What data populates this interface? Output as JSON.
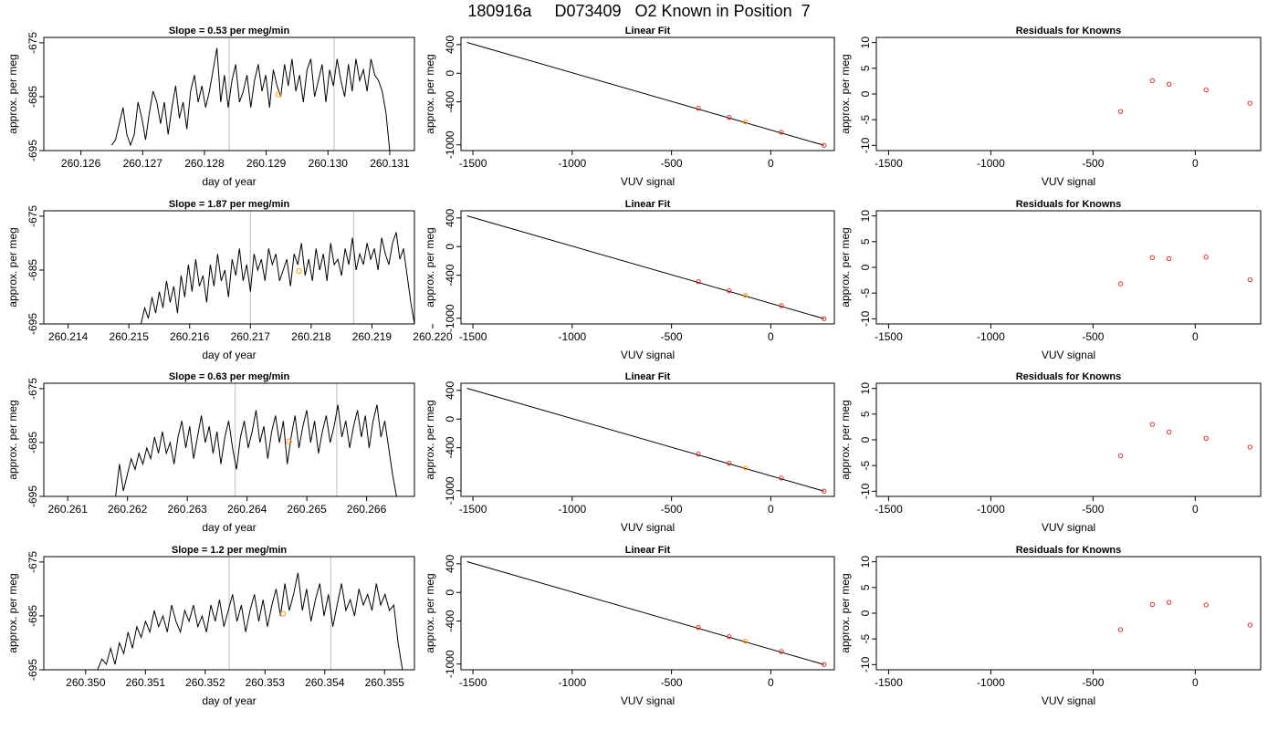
{
  "page": {
    "title": "180916a     D073409   O2 Known in Position  7"
  },
  "colors": {
    "axis": "#000000",
    "line": "#000000",
    "marker_known": "#e03030",
    "marker_highlight": "#ff9900",
    "vline": "#c8c8c8"
  },
  "chart_data": [
    {
      "panel": "row1-timeseries",
      "type": "line",
      "title": "Slope =  0.53  per meg/min",
      "xlabel": "day of year",
      "ylabel": "approx. per meg",
      "xlim": [
        260.1254,
        260.1314
      ],
      "ylim": [
        -695,
        -674
      ],
      "xticks": [
        260.126,
        260.127,
        260.128,
        260.129,
        260.13,
        260.131
      ],
      "xtick_labels": [
        "260.126",
        "260.127",
        "260.128",
        "260.129",
        "260.130",
        "260.131"
      ],
      "yticks": [
        -675,
        -685,
        -695
      ],
      "ytick_labels": [
        "-675",
        "-685",
        "-695"
      ],
      "vlines": [
        260.1284,
        260.1301
      ],
      "highlight_point": [
        260.1292,
        -684.6
      ],
      "series_x_start": 260.1265,
      "series_x_end": 260.131,
      "series_y": [
        -694,
        -693,
        -690,
        -687,
        -692,
        -694,
        -692,
        -686,
        -689,
        -693,
        -688,
        -684,
        -686,
        -690,
        -686,
        -692,
        -687,
        -683,
        -689,
        -686,
        -691,
        -684,
        -681,
        -686,
        -683,
        -687,
        -684,
        -680,
        -676,
        -686,
        -681,
        -687,
        -682,
        -679,
        -686,
        -684,
        -681,
        -687,
        -682,
        -679,
        -684,
        -681,
        -687,
        -680,
        -683,
        -685,
        -679,
        -683,
        -678,
        -684,
        -681,
        -686,
        -680,
        -678,
        -685,
        -682,
        -679,
        -686,
        -680,
        -683,
        -678,
        -682,
        -685,
        -679,
        -684,
        -678,
        -682,
        -680,
        -684,
        -678,
        -681,
        -682,
        -684,
        -688,
        -695
      ]
    },
    {
      "panel": "row1-linearfit",
      "type": "scatter",
      "title": "Linear Fit",
      "xlabel": "VUV signal",
      "ylabel": "approx. per meg",
      "xlim": [
        -1560,
        320
      ],
      "ylim": [
        -1080,
        500
      ],
      "xticks": [
        -1500,
        -1000,
        -500,
        0
      ],
      "xtick_labels": [
        "-1500",
        "-1000",
        "-500",
        "0"
      ],
      "yticks": [
        400,
        0,
        -400,
        -1000
      ],
      "ytick_labels": [
        "400",
        "0",
        "-400",
        "-1000"
      ],
      "fit_line": [
        [
          -1530,
          430
        ],
        [
          268,
          -1007
        ]
      ],
      "points": [
        [
          -365,
          -490
        ],
        [
          -210,
          -617
        ],
        [
          -128,
          -682
        ],
        [
          53,
          -824
        ],
        [
          268,
          -1006
        ]
      ],
      "highlight_index": 2
    },
    {
      "panel": "row1-residuals",
      "type": "scatter",
      "title": "Residuals for Knowns",
      "xlabel": "VUV signal",
      "ylabel": "approx. per meg",
      "xlim": [
        -1560,
        320
      ],
      "ylim": [
        -11,
        11
      ],
      "xticks": [
        -1500,
        -1000,
        -500,
        0
      ],
      "xtick_labels": [
        "-1500",
        "-1000",
        "-500",
        "0"
      ],
      "yticks": [
        10,
        5,
        0,
        -5,
        -10
      ],
      "ytick_labels": [
        "10",
        "5",
        "0",
        "-5",
        "-10"
      ],
      "points": [
        [
          -365,
          -3.4
        ],
        [
          -210,
          2.6
        ],
        [
          -128,
          1.9
        ],
        [
          53,
          0.8
        ],
        [
          268,
          -1.8
        ]
      ]
    },
    {
      "panel": "row2-timeseries",
      "type": "line",
      "title": "Slope =  1.87  per meg/min",
      "xlabel": "day of year",
      "ylabel": "approx. per meg",
      "xlim": [
        260.2136,
        260.2197
      ],
      "ylim": [
        -695,
        -674
      ],
      "xticks": [
        260.214,
        260.215,
        260.216,
        260.217,
        260.218,
        260.219,
        260.22
      ],
      "xtick_labels": [
        "260.214",
        "260.215",
        "260.216",
        "260.217",
        "260.218",
        "260.219",
        "260.220"
      ],
      "yticks": [
        -675,
        -685,
        -695
      ],
      "ytick_labels": [
        "-675",
        "-685",
        "-695"
      ],
      "vlines": [
        260.217,
        260.2187
      ],
      "highlight_point": [
        260.2178,
        -685.2
      ],
      "series_x_start": 260.2152,
      "series_x_end": 260.2197,
      "series_y": [
        -695,
        -692,
        -694,
        -690,
        -693,
        -689,
        -692,
        -687,
        -691,
        -688,
        -693,
        -686,
        -690,
        -684,
        -689,
        -683,
        -688,
        -686,
        -691,
        -684,
        -688,
        -682,
        -687,
        -685,
        -690,
        -683,
        -686,
        -681,
        -687,
        -684,
        -689,
        -682,
        -685,
        -683,
        -687,
        -681,
        -684,
        -682,
        -687,
        -685,
        -683,
        -688,
        -682,
        -684,
        -680,
        -686,
        -683,
        -687,
        -681,
        -685,
        -682,
        -687,
        -680,
        -684,
        -683,
        -686,
        -681,
        -684,
        -679,
        -685,
        -682,
        -684,
        -680,
        -683,
        -681,
        -685,
        -679,
        -682,
        -684,
        -680,
        -678,
        -683,
        -681,
        -686,
        -691,
        -695
      ]
    },
    {
      "panel": "row2-linearfit",
      "type": "scatter",
      "title": "Linear Fit",
      "xlabel": "VUV signal",
      "ylabel": "approx. per meg",
      "xlim": [
        -1560,
        320
      ],
      "ylim": [
        -1080,
        500
      ],
      "xticks": [
        -1500,
        -1000,
        -500,
        0
      ],
      "xtick_labels": [
        "-1500",
        "-1000",
        "-500",
        "0"
      ],
      "yticks": [
        400,
        0,
        -400,
        -1000
      ],
      "ytick_labels": [
        "400",
        "0",
        "-400",
        "-1000"
      ],
      "fit_line": [
        [
          -1530,
          430
        ],
        [
          268,
          -1007
        ]
      ],
      "points": [
        [
          -365,
          -490
        ],
        [
          -210,
          -617
        ],
        [
          -128,
          -682
        ],
        [
          53,
          -824
        ],
        [
          268,
          -1006
        ]
      ],
      "highlight_index": 2
    },
    {
      "panel": "row2-residuals",
      "type": "scatter",
      "title": "Residuals for Knowns",
      "xlabel": "VUV signal",
      "ylabel": "approx. per meg",
      "xlim": [
        -1560,
        320
      ],
      "ylim": [
        -11,
        11
      ],
      "xticks": [
        -1500,
        -1000,
        -500,
        0
      ],
      "xtick_labels": [
        "-1500",
        "-1000",
        "-500",
        "0"
      ],
      "yticks": [
        10,
        5,
        0,
        -5,
        -10
      ],
      "ytick_labels": [
        "10",
        "5",
        "0",
        "-5",
        "-10"
      ],
      "points": [
        [
          -365,
          -3.2
        ],
        [
          -210,
          1.9
        ],
        [
          -128,
          1.7
        ],
        [
          53,
          2.0
        ],
        [
          268,
          -2.4
        ]
      ]
    },
    {
      "panel": "row3-timeseries",
      "type": "line",
      "title": "Slope =  0.63  per meg/min",
      "xlabel": "day of year",
      "ylabel": "approx. per meg",
      "xlim": [
        260.2606,
        260.2668
      ],
      "ylim": [
        -695,
        -674
      ],
      "xticks": [
        260.261,
        260.262,
        260.263,
        260.264,
        260.265,
        260.266
      ],
      "xtick_labels": [
        "260.261",
        "260.262",
        "260.263",
        "260.264",
        "260.265",
        "260.266"
      ],
      "yticks": [
        -675,
        -685,
        -695
      ],
      "ytick_labels": [
        "-675",
        "-685",
        "-695"
      ],
      "vlines": [
        260.2638,
        260.2655
      ],
      "highlight_point": [
        260.2647,
        -684.8
      ],
      "series_x_start": 260.2618,
      "series_x_end": 260.2665,
      "series_y": [
        -695,
        -689,
        -694,
        -691,
        -688,
        -690,
        -687,
        -689,
        -686,
        -688,
        -684,
        -687,
        -683,
        -687,
        -685,
        -689,
        -684,
        -681,
        -686,
        -682,
        -688,
        -684,
        -680,
        -685,
        -682,
        -687,
        -683,
        -689,
        -684,
        -681,
        -686,
        -690,
        -684,
        -681,
        -686,
        -683,
        -679,
        -685,
        -682,
        -688,
        -683,
        -680,
        -685,
        -681,
        -689,
        -684,
        -680,
        -686,
        -682,
        -679,
        -685,
        -681,
        -687,
        -683,
        -680,
        -685,
        -682,
        -678,
        -684,
        -681,
        -686,
        -682,
        -679,
        -684,
        -680,
        -686,
        -681,
        -678,
        -684,
        -681,
        -686,
        -691,
        -695
      ]
    },
    {
      "panel": "row3-linearfit",
      "type": "scatter",
      "title": "Linear Fit",
      "xlabel": "VUV signal",
      "ylabel": "approx. per meg",
      "xlim": [
        -1560,
        320
      ],
      "ylim": [
        -1080,
        500
      ],
      "xticks": [
        -1500,
        -1000,
        -500,
        0
      ],
      "xtick_labels": [
        "-1500",
        "-1000",
        "-500",
        "0"
      ],
      "yticks": [
        400,
        0,
        -400,
        -1000
      ],
      "ytick_labels": [
        "400",
        "0",
        "-400",
        "-1000"
      ],
      "fit_line": [
        [
          -1530,
          430
        ],
        [
          268,
          -1007
        ]
      ],
      "points": [
        [
          -365,
          -490
        ],
        [
          -210,
          -617
        ],
        [
          -128,
          -682
        ],
        [
          53,
          -824
        ],
        [
          268,
          -1006
        ]
      ],
      "highlight_index": 2
    },
    {
      "panel": "row3-residuals",
      "type": "scatter",
      "title": "Residuals for Knowns",
      "xlabel": "VUV signal",
      "ylabel": "approx. per meg",
      "xlim": [
        -1560,
        320
      ],
      "ylim": [
        -11,
        11
      ],
      "xticks": [
        -1500,
        -1000,
        -500,
        0
      ],
      "xtick_labels": [
        "-1500",
        "-1000",
        "-500",
        "0"
      ],
      "yticks": [
        10,
        5,
        0,
        -5,
        -10
      ],
      "ytick_labels": [
        "10",
        "5",
        "0",
        "-5",
        "-10"
      ],
      "points": [
        [
          -365,
          -3.1
        ],
        [
          -210,
          3.0
        ],
        [
          -128,
          1.5
        ],
        [
          53,
          0.3
        ],
        [
          268,
          -1.4
        ]
      ]
    },
    {
      "panel": "row4-timeseries",
      "type": "line",
      "title": "Slope =  1.2  per meg/min",
      "xlabel": "day of year",
      "ylabel": "approx. per meg",
      "xlim": [
        260.3493,
        260.3555
      ],
      "ylim": [
        -695,
        -674
      ],
      "xticks": [
        260.35,
        260.351,
        260.352,
        260.353,
        260.354,
        260.355
      ],
      "xtick_labels": [
        "260.350",
        "260.351",
        "260.352",
        "260.353",
        "260.354",
        "260.355"
      ],
      "yticks": [
        -675,
        -685,
        -695
      ],
      "ytick_labels": [
        "-675",
        "-685",
        "-695"
      ],
      "vlines": [
        260.3524,
        260.3541
      ],
      "highlight_point": [
        260.3533,
        -684.6
      ],
      "series_x_start": 260.3502,
      "series_x_end": 260.3553,
      "series_y": [
        -695,
        -693,
        -694,
        -691,
        -694,
        -690,
        -692,
        -688,
        -691,
        -687,
        -689,
        -686,
        -688,
        -684,
        -687,
        -685,
        -688,
        -683,
        -686,
        -688,
        -684,
        -686,
        -683,
        -687,
        -685,
        -688,
        -683,
        -686,
        -682,
        -687,
        -684,
        -681,
        -686,
        -683,
        -688,
        -684,
        -681,
        -686,
        -682,
        -687,
        -683,
        -680,
        -685,
        -679,
        -684,
        -681,
        -677,
        -684,
        -680,
        -686,
        -682,
        -679,
        -685,
        -681,
        -687,
        -683,
        -679,
        -684,
        -682,
        -685,
        -680,
        -683,
        -681,
        -684,
        -679,
        -683,
        -681,
        -684,
        -683,
        -690,
        -695
      ]
    },
    {
      "panel": "row4-linearfit",
      "type": "scatter",
      "title": "Linear Fit",
      "xlabel": "VUV signal",
      "ylabel": "approx. per meg",
      "xlim": [
        -1560,
        320
      ],
      "ylim": [
        -1080,
        500
      ],
      "xticks": [
        -1500,
        -1000,
        -500,
        0
      ],
      "xtick_labels": [
        "-1500",
        "-1000",
        "-500",
        "0"
      ],
      "yticks": [
        400,
        0,
        -400,
        -1000
      ],
      "ytick_labels": [
        "400",
        "0",
        "-400",
        "-1000"
      ],
      "fit_line": [
        [
          -1530,
          430
        ],
        [
          268,
          -1007
        ]
      ],
      "points": [
        [
          -365,
          -490
        ],
        [
          -210,
          -617
        ],
        [
          -128,
          -682
        ],
        [
          53,
          -824
        ],
        [
          268,
          -1006
        ]
      ],
      "highlight_index": 2
    },
    {
      "panel": "row4-residuals",
      "type": "scatter",
      "title": "Residuals for Knowns",
      "xlabel": "VUV signal",
      "ylabel": "approx. per meg",
      "xlim": [
        -1560,
        320
      ],
      "ylim": [
        -11,
        11
      ],
      "xticks": [
        -1500,
        -1000,
        -500,
        0
      ],
      "xtick_labels": [
        "-1500",
        "-1000",
        "-500",
        "0"
      ],
      "yticks": [
        10,
        5,
        0,
        -5,
        -10
      ],
      "ytick_labels": [
        "10",
        "5",
        "0",
        "-5",
        "-10"
      ],
      "points": [
        [
          -365,
          -3.2
        ],
        [
          -210,
          1.7
        ],
        [
          -128,
          2.1
        ],
        [
          53,
          1.6
        ],
        [
          268,
          -2.3
        ]
      ]
    }
  ]
}
